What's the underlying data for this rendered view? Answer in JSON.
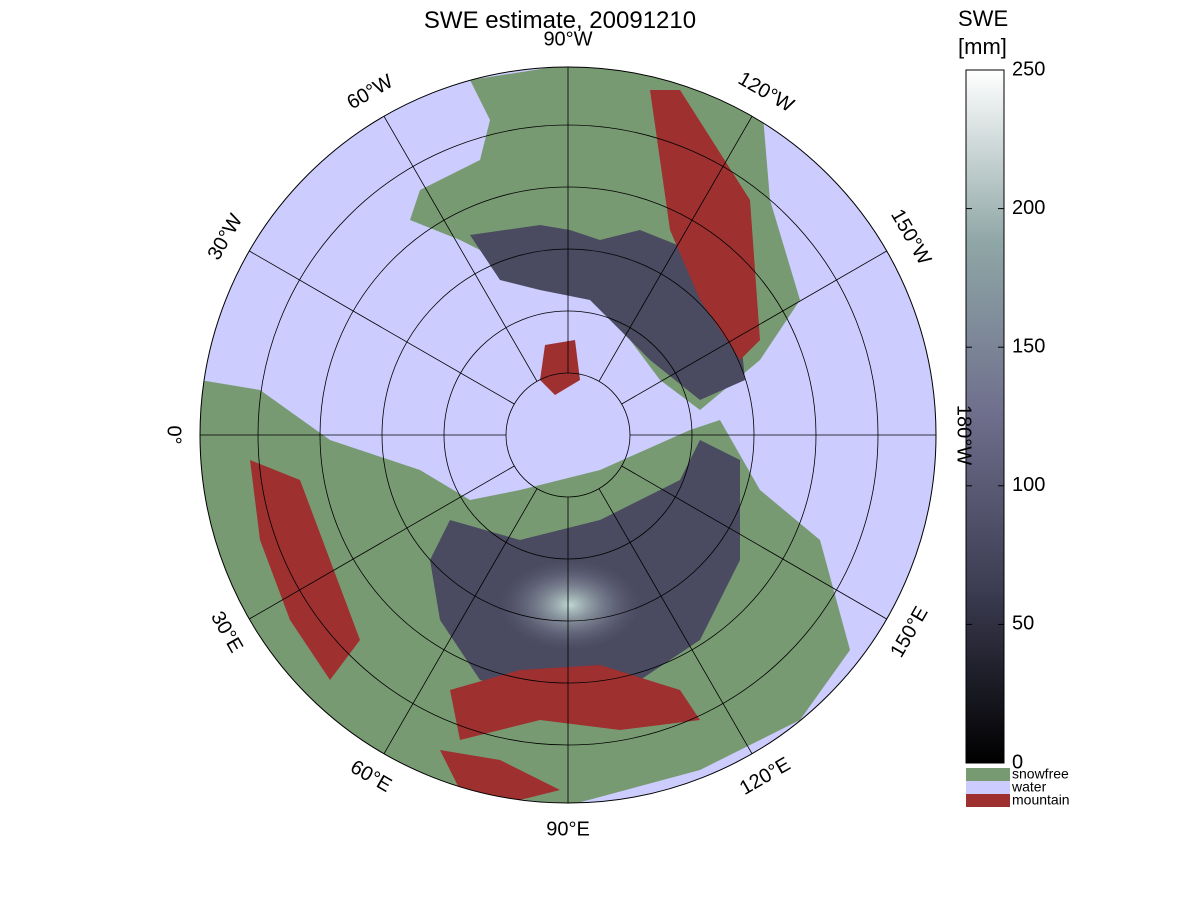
{
  "title": "SWE estimate, 20091210",
  "colorbar": {
    "label": [
      "SWE",
      "[mm]"
    ],
    "lim": [
      0,
      250
    ],
    "ticks": [
      0,
      50,
      100,
      150,
      200,
      250
    ],
    "colors": [
      "#000000",
      "#3c3c52",
      "#6e6e8c",
      "#8fa6a6",
      "#ffffff"
    ]
  },
  "legend": [
    {
      "name": "snowfree",
      "color": "#789a72"
    },
    {
      "name": "water",
      "color": "#ccccff"
    },
    {
      "name": "mountain",
      "color": "#9e3030"
    }
  ],
  "meridians": [
    {
      "lon": -90,
      "label": "90°W"
    },
    {
      "lon": -120,
      "label": "120°W"
    },
    {
      "lon": -150,
      "label": "150°W"
    },
    {
      "lon": 180,
      "label": "180°W"
    },
    {
      "lon": 150,
      "label": "150°E"
    },
    {
      "lon": 120,
      "label": "120°E"
    },
    {
      "lon": 90,
      "label": "90°E"
    },
    {
      "lon": 60,
      "label": "60°E"
    },
    {
      "lon": 30,
      "label": "30°E"
    },
    {
      "lon": 0,
      "label": "0°"
    },
    {
      "lon": -30,
      "label": "30°W"
    },
    {
      "lon": -60,
      "label": "60°W"
    }
  ]
}
